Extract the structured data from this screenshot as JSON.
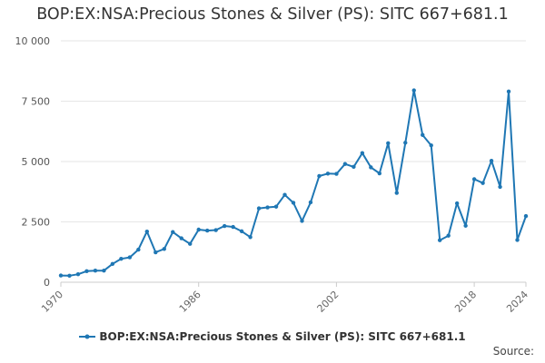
{
  "title": "BOP:EX:NSA:Precious Stones & Silver (PS): SITC 667+681.1",
  "source_label": "Source:",
  "colors": {
    "series": "#1f77b4",
    "grid": "#e6e6e6",
    "axis": "#cccccc"
  },
  "chart_data": {
    "type": "line",
    "title": "BOP:EX:NSA:Precious Stones & Silver (PS): SITC 667+681.1",
    "xlim": [
      1970,
      2024
    ],
    "ylim": [
      0,
      10000
    ],
    "y_ticks": [
      0,
      2500,
      5000,
      7500,
      10000
    ],
    "y_tick_labels": [
      "0",
      "2 500",
      "5 000",
      "7 500",
      "10 000"
    ],
    "x_ticks": [
      1970,
      1986,
      2002,
      2018,
      2024
    ],
    "x_tick_labels": [
      "1970",
      "1986",
      "2002",
      "2018",
      "2024"
    ],
    "grid": true,
    "legend_position": "bottom",
    "series": [
      {
        "name": "BOP:EX:NSA:Precious Stones & Silver (PS): SITC 667+681.1",
        "x": [
          1970,
          1971,
          1972,
          1973,
          1974,
          1975,
          1976,
          1977,
          1978,
          1979,
          1980,
          1981,
          1982,
          1983,
          1984,
          1985,
          1986,
          1987,
          1988,
          1989,
          1990,
          1991,
          1992,
          1993,
          1994,
          1995,
          1996,
          1997,
          1998,
          1999,
          2000,
          2001,
          2002,
          2003,
          2004,
          2005,
          2006,
          2007,
          2008,
          2009,
          2010,
          2011,
          2012,
          2013,
          2014,
          2015,
          2016,
          2017,
          2018,
          2019,
          2020,
          2021,
          2022,
          2023,
          2024
        ],
        "y": [
          280,
          270,
          330,
          460,
          480,
          480,
          760,
          970,
          1030,
          1350,
          2100,
          1240,
          1380,
          2080,
          1820,
          1590,
          2180,
          2140,
          2160,
          2330,
          2290,
          2110,
          1870,
          3060,
          3100,
          3130,
          3620,
          3290,
          2540,
          3310,
          4400,
          4500,
          4490,
          4900,
          4780,
          5350,
          4760,
          4510,
          5760,
          3700,
          5780,
          7950,
          6100,
          5670,
          1740,
          1930,
          3270,
          2340,
          4270,
          4110,
          5030,
          3950,
          7900,
          1750,
          2740
        ]
      }
    ]
  }
}
